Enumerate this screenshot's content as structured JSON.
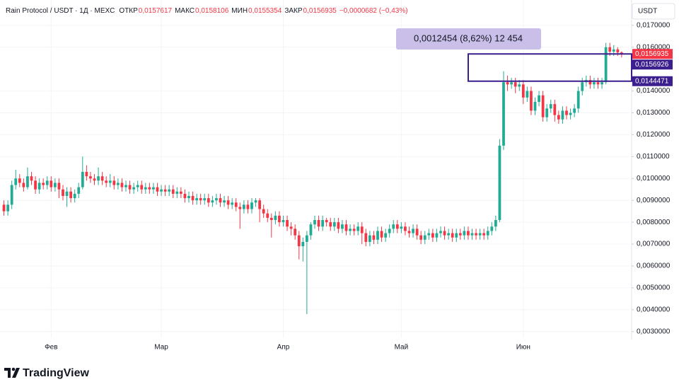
{
  "chart_data": {
    "type": "candlestick",
    "title": "Rain Protocol / USDT · 1Д · MEXC",
    "ohlc_legend": [
      {
        "label": "ОТКР",
        "value": "0,0157617"
      },
      {
        "label": "МАКС",
        "value": "0,0158106"
      },
      {
        "label": "МИН",
        "value": "0,0155354"
      },
      {
        "label": "ЗАКР",
        "value": "0,0156935"
      }
    ],
    "change": "−0,0000682 (−0,43%)",
    "y_axis_unit": "USDT",
    "up_color": "#22ab94",
    "down_color": "#f23645",
    "grid": true,
    "open": [
      0.0088,
      0.0085,
      0.0088,
      0.0097,
      0.01,
      0.0098,
      0.0096,
      0.0101,
      0.0099,
      0.0095,
      0.0098,
      0.0097,
      0.0099,
      0.0096,
      0.0098,
      0.0095,
      0.0092,
      0.0094,
      0.0091,
      0.0093,
      0.0096,
      0.0103,
      0.0101,
      0.01,
      0.0099,
      0.0101,
      0.0099,
      0.0098,
      0.0099,
      0.0097,
      0.0098,
      0.0096,
      0.0097,
      0.0095,
      0.0096,
      0.0097,
      0.0095,
      0.0096,
      0.0095,
      0.0096,
      0.0094,
      0.0095,
      0.0094,
      0.0095,
      0.0093,
      0.0094,
      0.0093,
      0.0091,
      0.0092,
      0.009,
      0.0091,
      0.009,
      0.0091,
      0.0089,
      0.009,
      0.0091,
      0.0089,
      0.009,
      0.0088,
      0.0089,
      0.0087,
      0.0086,
      0.0088,
      0.0086,
      0.0089,
      0.009,
      0.0086,
      0.0084,
      0.0082,
      0.0081,
      0.0083,
      0.008,
      0.0081,
      0.0078,
      0.0077,
      0.0074,
      0.0069,
      0.0071,
      0.0074,
      0.0079,
      0.0081,
      0.0078,
      0.0081,
      0.008,
      0.0078,
      0.008,
      0.0077,
      0.0079,
      0.0076,
      0.0077,
      0.0076,
      0.0078,
      0.0075,
      0.0071,
      0.0074,
      0.0072,
      0.0076,
      0.0073,
      0.0075,
      0.0077,
      0.0079,
      0.0077,
      0.0078,
      0.0076,
      0.0075,
      0.0077,
      0.0074,
      0.0072,
      0.0074,
      0.0075,
      0.0073,
      0.0075,
      0.0076,
      0.0074,
      0.0075,
      0.0073,
      0.0075,
      0.0074,
      0.0076,
      0.0074,
      0.0075,
      0.0074,
      0.0075,
      0.0074,
      0.0076,
      0.0078,
      0.0081,
      0.0115,
      0.0144,
      0.0143,
      0.0144,
      0.0142,
      0.0143,
      0.0137,
      0.014,
      0.0131,
      0.0135,
      0.0138,
      0.0128,
      0.0132,
      0.0134,
      0.0129,
      0.0127,
      0.0131,
      0.0129,
      0.013,
      0.0132,
      0.014,
      0.0144,
      0.0145,
      0.0143,
      0.0144,
      0.0143,
      0.0144,
      0.016,
      0.0158,
      0.0159,
      0.0157617
    ],
    "high": [
      0.009,
      0.009,
      0.0099,
      0.0104,
      0.0102,
      0.01,
      0.0105,
      0.0103,
      0.0101,
      0.01,
      0.01,
      0.0101,
      0.0101,
      0.01,
      0.01,
      0.0097,
      0.0096,
      0.0096,
      0.0095,
      0.0098,
      0.011,
      0.0106,
      0.0103,
      0.0102,
      0.0105,
      0.0103,
      0.0101,
      0.0102,
      0.0101,
      0.01,
      0.01,
      0.0099,
      0.0099,
      0.0098,
      0.0099,
      0.0099,
      0.0098,
      0.0098,
      0.0098,
      0.0098,
      0.0097,
      0.0097,
      0.0097,
      0.0097,
      0.0096,
      0.0096,
      0.0095,
      0.0094,
      0.0094,
      0.0093,
      0.0093,
      0.0093,
      0.0093,
      0.0092,
      0.0093,
      0.0093,
      0.0092,
      0.0092,
      0.0091,
      0.0091,
      0.0089,
      0.009,
      0.009,
      0.0091,
      0.0091,
      0.0091,
      0.0088,
      0.0086,
      0.0084,
      0.0085,
      0.0085,
      0.0083,
      0.0083,
      0.008,
      0.0079,
      0.0076,
      0.0073,
      0.0076,
      0.008,
      0.0083,
      0.0083,
      0.0083,
      0.0082,
      0.0082,
      0.0082,
      0.0082,
      0.0081,
      0.0081,
      0.0079,
      0.0079,
      0.008,
      0.008,
      0.0077,
      0.0076,
      0.0076,
      0.0078,
      0.0078,
      0.0077,
      0.0079,
      0.0081,
      0.0081,
      0.008,
      0.008,
      0.0078,
      0.0079,
      0.0079,
      0.0076,
      0.0076,
      0.0077,
      0.0077,
      0.0077,
      0.0078,
      0.0078,
      0.0077,
      0.0077,
      0.0077,
      0.0077,
      0.0078,
      0.0078,
      0.0077,
      0.0077,
      0.0077,
      0.0077,
      0.0078,
      0.008,
      0.0083,
      0.0118,
      0.0149,
      0.0147,
      0.0146,
      0.0146,
      0.0145,
      0.0145,
      0.0142,
      0.0142,
      0.0137,
      0.014,
      0.014,
      0.0134,
      0.0136,
      0.0136,
      0.0131,
      0.0133,
      0.0133,
      0.0132,
      0.0134,
      0.0142,
      0.0146,
      0.0147,
      0.0147,
      0.0146,
      0.0146,
      0.0146,
      0.0162,
      0.0162,
      0.0161,
      0.016,
      0.0158106
    ],
    "low": [
      0.0083,
      0.0083,
      0.0086,
      0.0095,
      0.0096,
      0.0094,
      0.0095,
      0.0097,
      0.0093,
      0.0093,
      0.0095,
      0.0095,
      0.0094,
      0.0094,
      0.0091,
      0.009,
      0.0087,
      0.0089,
      0.0089,
      0.0091,
      0.0095,
      0.0099,
      0.0098,
      0.0097,
      0.0097,
      0.0097,
      0.0096,
      0.0096,
      0.0095,
      0.0095,
      0.0094,
      0.0094,
      0.0093,
      0.0093,
      0.0094,
      0.0093,
      0.0093,
      0.0093,
      0.0093,
      0.0092,
      0.0092,
      0.0092,
      0.0092,
      0.0091,
      0.0091,
      0.0091,
      0.0089,
      0.0089,
      0.0088,
      0.0088,
      0.0088,
      0.0088,
      0.0087,
      0.0087,
      0.0088,
      0.0087,
      0.0087,
      0.0086,
      0.0086,
      0.0085,
      0.0077,
      0.0084,
      0.0084,
      0.0084,
      0.0087,
      0.008,
      0.0082,
      0.008,
      0.0073,
      0.0079,
      0.0078,
      0.0078,
      0.0076,
      0.0074,
      0.0072,
      0.0063,
      0.0062,
      0.0038,
      0.0072,
      0.0077,
      0.0076,
      0.0076,
      0.0078,
      0.0076,
      0.0076,
      0.0075,
      0.0075,
      0.0074,
      0.0074,
      0.0074,
      0.0074,
      0.007,
      0.0069,
      0.0069,
      0.007,
      0.007,
      0.0071,
      0.0071,
      0.0073,
      0.0075,
      0.0075,
      0.0075,
      0.0074,
      0.0073,
      0.0073,
      0.0072,
      0.007,
      0.007,
      0.0072,
      0.0071,
      0.0071,
      0.0073,
      0.0072,
      0.0072,
      0.0071,
      0.0071,
      0.0072,
      0.0072,
      0.0072,
      0.0072,
      0.0072,
      0.0072,
      0.0072,
      0.0072,
      0.0074,
      0.0076,
      0.008,
      0.0113,
      0.014,
      0.0141,
      0.0139,
      0.014,
      0.0134,
      0.0135,
      0.0129,
      0.0129,
      0.0133,
      0.0126,
      0.0126,
      0.013,
      0.0126,
      0.0125,
      0.0125,
      0.0127,
      0.0127,
      0.0128,
      0.013,
      0.0138,
      0.0142,
      0.0141,
      0.0141,
      0.0141,
      0.0141,
      0.0143,
      0.0156,
      0.0156,
      0.0156,
      0.0155354
    ],
    "close": [
      0.0085,
      0.0088,
      0.0097,
      0.01,
      0.0098,
      0.0096,
      0.0101,
      0.0099,
      0.0095,
      0.0098,
      0.0097,
      0.0099,
      0.0096,
      0.0098,
      0.0095,
      0.0092,
      0.0094,
      0.0091,
      0.0093,
      0.0096,
      0.0103,
      0.0101,
      0.01,
      0.0099,
      0.0101,
      0.0099,
      0.0098,
      0.0099,
      0.0097,
      0.0098,
      0.0096,
      0.0097,
      0.0095,
      0.0096,
      0.0097,
      0.0095,
      0.0096,
      0.0095,
      0.0096,
      0.0094,
      0.0095,
      0.0094,
      0.0095,
      0.0093,
      0.0094,
      0.0093,
      0.0091,
      0.0092,
      0.009,
      0.0091,
      0.009,
      0.0091,
      0.0089,
      0.009,
      0.0091,
      0.0089,
      0.009,
      0.0088,
      0.0089,
      0.0087,
      0.0086,
      0.0088,
      0.0086,
      0.0089,
      0.009,
      0.0086,
      0.0084,
      0.0082,
      0.0081,
      0.0083,
      0.008,
      0.0081,
      0.0078,
      0.0077,
      0.0074,
      0.0069,
      0.0071,
      0.0074,
      0.0079,
      0.0081,
      0.0078,
      0.0081,
      0.008,
      0.0078,
      0.008,
      0.0077,
      0.0079,
      0.0076,
      0.0077,
      0.0076,
      0.0078,
      0.0075,
      0.0071,
      0.0074,
      0.0072,
      0.0076,
      0.0073,
      0.0075,
      0.0077,
      0.0079,
      0.0077,
      0.0078,
      0.0076,
      0.0075,
      0.0077,
      0.0074,
      0.0072,
      0.0074,
      0.0075,
      0.0073,
      0.0075,
      0.0076,
      0.0074,
      0.0075,
      0.0073,
      0.0075,
      0.0074,
      0.0076,
      0.0074,
      0.0075,
      0.0074,
      0.0075,
      0.0074,
      0.0076,
      0.0078,
      0.0081,
      0.0115,
      0.0144,
      0.0143,
      0.0144,
      0.0142,
      0.0143,
      0.0137,
      0.014,
      0.0131,
      0.0135,
      0.0138,
      0.0128,
      0.0132,
      0.0134,
      0.0129,
      0.0127,
      0.0131,
      0.0129,
      0.013,
      0.0132,
      0.014,
      0.0144,
      0.0145,
      0.0143,
      0.0144,
      0.0143,
      0.0144,
      0.016,
      0.0158,
      0.0159,
      0.0157617,
      0.0156935
    ],
    "xlim": [
      -1,
      159
    ],
    "xticks": [
      {
        "value": 12,
        "label": "Фев"
      },
      {
        "value": 40,
        "label": "Мар"
      },
      {
        "value": 71,
        "label": "Апр"
      },
      {
        "value": 101,
        "label": "Май"
      },
      {
        "value": 132,
        "label": "Июн"
      }
    ],
    "ylim": [
      0.0027,
      0.0179
    ],
    "yticks": [
      {
        "value": 0.003,
        "label": "0,0030000"
      },
      {
        "value": 0.004,
        "label": "0,0040000"
      },
      {
        "value": 0.005,
        "label": "0,0050000"
      },
      {
        "value": 0.006,
        "label": "0,0060000"
      },
      {
        "value": 0.007,
        "label": "0,0070000"
      },
      {
        "value": 0.008,
        "label": "0,0080000"
      },
      {
        "value": 0.009,
        "label": "0,0090000"
      },
      {
        "value": 0.01,
        "label": "0,0100000"
      },
      {
        "value": 0.011,
        "label": "0,0110000"
      },
      {
        "value": 0.012,
        "label": "0,0120000"
      },
      {
        "value": 0.013,
        "label": "0,0130000"
      },
      {
        "value": 0.014,
        "label": "0,0140000"
      },
      {
        "value": 0.016,
        "label": "0,0160000"
      },
      {
        "value": 0.017,
        "label": "0,0170000"
      }
    ],
    "price_range": {
      "high": {
        "value": 0.0156926,
        "label": "0,0156926"
      },
      "low": {
        "value": 0.0144471,
        "label": "0,0144471"
      },
      "text": "0,0012454 (8,62%) 12 454",
      "color": "#3b1f8f",
      "fill": "#c9bfe8"
    },
    "last_price": {
      "value": 0.0156935,
      "label": "0,0156935"
    }
  },
  "footer": {
    "brand": "TradingView"
  }
}
